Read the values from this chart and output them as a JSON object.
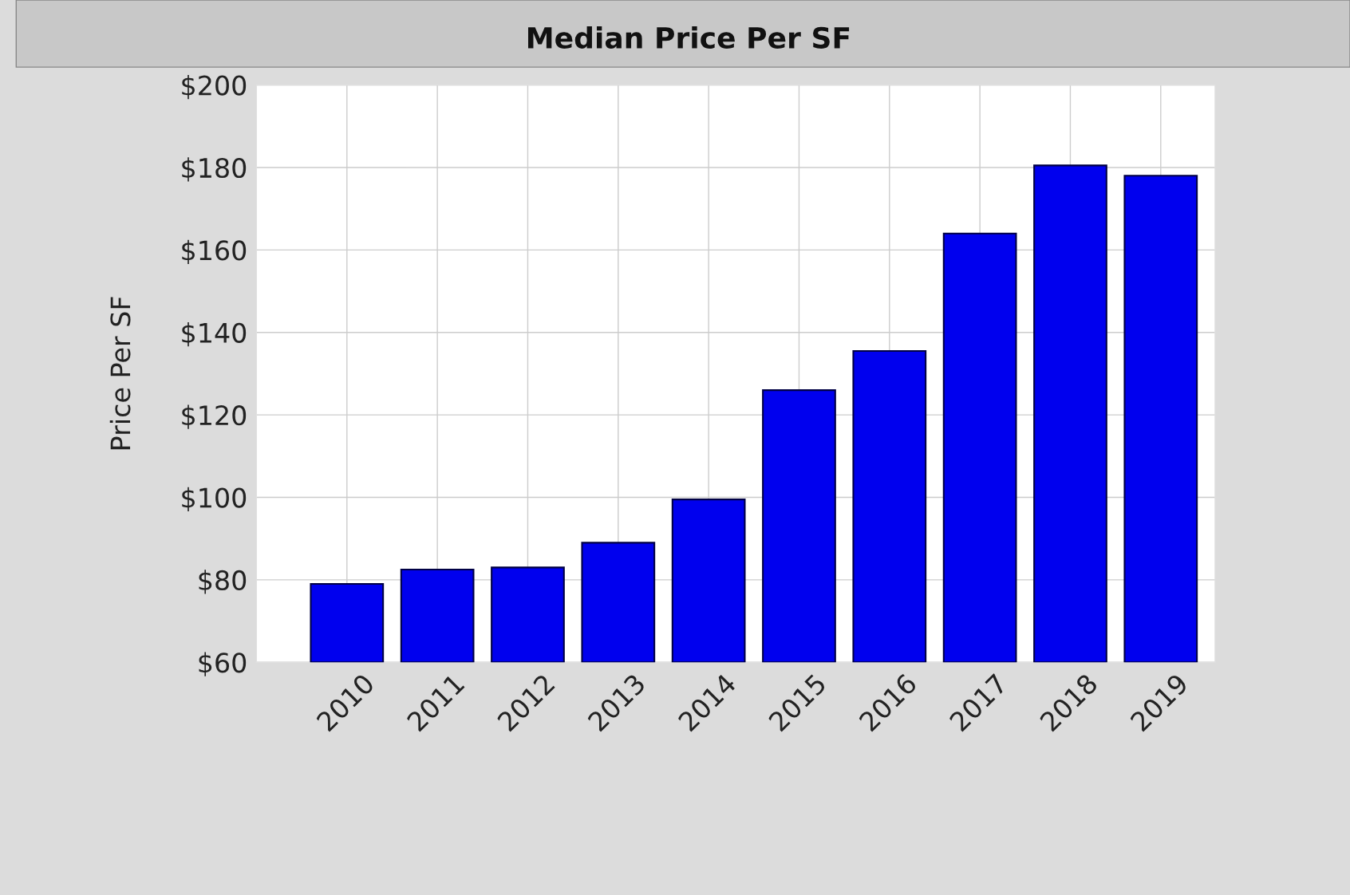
{
  "chart_data": {
    "type": "bar",
    "title": "Median Price Per SF",
    "ylabel": "Price Per SF",
    "categories": [
      "2010",
      "2011",
      "2012",
      "2013",
      "2014",
      "2015",
      "2016",
      "2017",
      "2018",
      "2019"
    ],
    "values": [
      79,
      82.5,
      83,
      89,
      99.5,
      126,
      135.5,
      164,
      180.5,
      178
    ],
    "color": "#0000ee",
    "ylim": [
      60,
      200
    ],
    "yticks": [
      {
        "value": 60,
        "label": "$60"
      },
      {
        "value": 80,
        "label": "$80"
      },
      {
        "value": 100,
        "label": "$100"
      },
      {
        "value": 120,
        "label": "$120"
      },
      {
        "value": 140,
        "label": "$140"
      },
      {
        "value": 160,
        "label": "$160"
      },
      {
        "value": 180,
        "label": "$180"
      },
      {
        "value": 200,
        "label": "$200"
      }
    ],
    "grid": true
  }
}
